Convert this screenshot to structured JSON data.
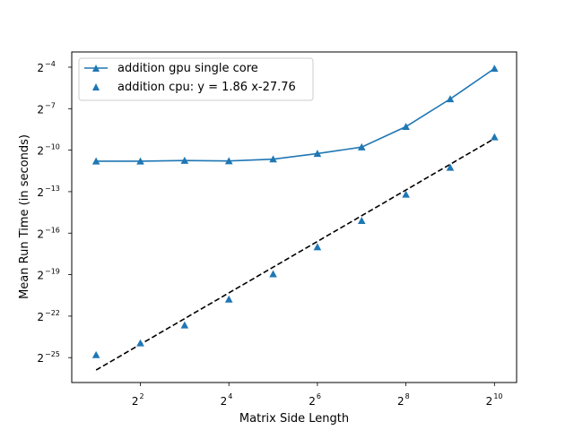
{
  "chart_data": {
    "type": "line",
    "xlabel": "Matrix Side Length",
    "ylabel": "Mean Run Time (in seconds)",
    "x_scale": "log2",
    "y_scale": "log2",
    "x_tick_base": "2",
    "y_tick_base": "2",
    "x_ticks": [
      2,
      4,
      6,
      8,
      10
    ],
    "y_ticks": [
      -25,
      -22,
      -19,
      -16,
      -13,
      -10,
      -7,
      -4
    ],
    "x_tick_exponent_labels": [
      "2",
      "4",
      "6",
      "8",
      "10"
    ],
    "y_tick_exponent_labels": [
      "−25",
      "−22",
      "−19",
      "−16",
      "−13",
      "−10",
      "−7",
      "−4"
    ],
    "xlim_log2": [
      0.45,
      10.5
    ],
    "ylim_log2": [
      -26.8,
      -2.9
    ],
    "x": [
      2,
      4,
      8,
      16,
      32,
      64,
      128,
      256,
      512,
      1024
    ],
    "series": [
      {
        "name": "addition gpu single core",
        "style": "line-markers",
        "marker": "triangle",
        "color": "#1f77b4",
        "y_log2": [
          -10.8,
          -10.8,
          -10.75,
          -10.78,
          -10.65,
          -10.25,
          -9.78,
          -8.3,
          -6.3,
          -4.1
        ]
      },
      {
        "name": "addition cpu: y = 1.86 x-27.76",
        "style": "markers",
        "marker": "triangle",
        "color": "#1f77b4",
        "y_log2": [
          -24.8,
          -23.95,
          -22.65,
          -20.78,
          -18.95,
          -17.0,
          -15.1,
          -13.2,
          -11.25,
          -9.05
        ]
      }
    ],
    "fit_line": {
      "slope": 1.86,
      "intercept": -27.76,
      "x_log2_range": [
        1,
        10
      ],
      "style": "dashed",
      "color": "#000000"
    },
    "legend": {
      "position": "upper-left",
      "entries": [
        "addition gpu single core",
        "addition cpu: y = 1.86 x-27.76"
      ]
    },
    "grid": false
  }
}
